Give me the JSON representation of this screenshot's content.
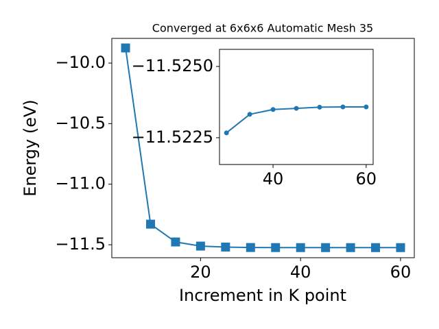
{
  "chart_data": [
    {
      "type": "line",
      "title": "Converged at 6x6x6 Automatic Mesh 35",
      "x_label": "Increment in K point",
      "y_label": "Energy (eV)",
      "marker": "square",
      "color": "#1f77b4",
      "x": [
        5,
        10,
        15,
        20,
        25,
        30,
        35,
        40,
        45,
        50,
        55,
        60
      ],
      "values": [
        -9.875,
        -11.33,
        -11.477,
        -11.511,
        -11.519,
        -11.5227,
        -11.5233,
        -11.5235,
        -11.5235,
        -11.5236,
        -11.5236,
        -11.5236
      ],
      "xlim": [
        2.25,
        62.75
      ],
      "ylim": [
        -11.607,
        -9.796
      ],
      "xticks": [
        20,
        40,
        60
      ],
      "yticks": [
        {
          "value": -10.0,
          "label": "−10.0"
        },
        {
          "value": -10.5,
          "label": "−10.5"
        },
        {
          "value": -11.0,
          "label": "−11.0"
        },
        {
          "value": -11.5,
          "label": "−11.5"
        }
      ]
    },
    {
      "type": "line",
      "marker": "circle",
      "color": "#1f77b4",
      "x": [
        30,
        35,
        40,
        45,
        50,
        55,
        60
      ],
      "values": [
        -11.52267,
        -11.52332,
        -11.52349,
        -11.52353,
        -11.52357,
        -11.52358,
        -11.52358
      ],
      "xlim": [
        28.5,
        61.5
      ],
      "ylim": [
        -11.52156,
        -11.5256
      ],
      "xticks": [
        40,
        60
      ],
      "yticks": [
        {
          "value": -11.525,
          "label": "−11.5250"
        },
        {
          "value": -11.5225,
          "label": "−11.5225"
        }
      ]
    }
  ]
}
